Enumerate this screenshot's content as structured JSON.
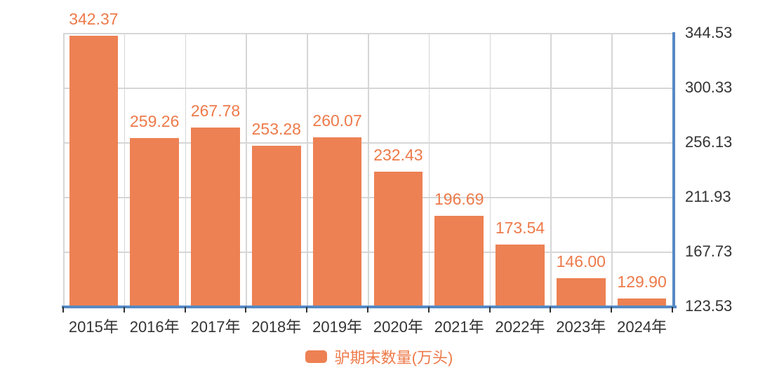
{
  "chart_data": {
    "type": "bar",
    "title": "",
    "categories": [
      "2015年",
      "2016年",
      "2017年",
      "2018年",
      "2019年",
      "2020年",
      "2021年",
      "2022年",
      "2023年",
      "2024年"
    ],
    "series": [
      {
        "name": "驴期末数量(万头)",
        "values": [
          342.37,
          259.26,
          267.78,
          253.28,
          260.07,
          232.43,
          196.69,
          173.54,
          146.0,
          129.9
        ]
      }
    ],
    "value_labels": [
      "342.37",
      "259.26",
      "267.78",
      "253.28",
      "260.07",
      "232.43",
      "196.69",
      "173.54",
      "146.00",
      "129.90"
    ],
    "xlabel": "",
    "ylabel": "",
    "y_axis": {
      "position": "right",
      "min": 123.53,
      "max": 344.53,
      "tick_labels": [
        "344.53",
        "300.33",
        "256.13",
        "211.93",
        "167.73",
        "123.53"
      ]
    },
    "grid": true,
    "legend": {
      "position": "bottom",
      "label": "驴期末数量(万头)"
    },
    "colors": {
      "bar": "#ED8153",
      "accent_text": "#ED7A4A",
      "axis_line": "#5589C4",
      "grid_line": "#D6D6D6",
      "tick_text": "#333333",
      "background": "#FFFFFF"
    }
  }
}
